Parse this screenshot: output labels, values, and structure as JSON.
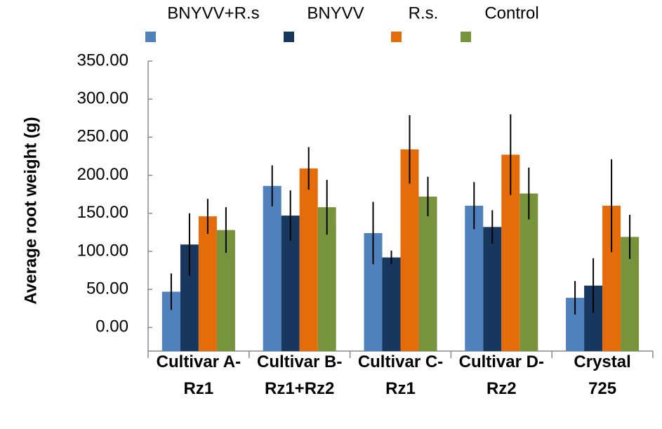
{
  "chart_data": {
    "type": "bar",
    "y_label": "Average root weight (g)",
    "categories": [
      [
        "Cultivar A-",
        "Rz1"
      ],
      [
        "Cultivar B-",
        "Rz1+Rz2"
      ],
      [
        "Cultivar C-",
        "Rz1"
      ],
      [
        "Cultivar D-",
        "Rz2"
      ],
      [
        "Crystal",
        "725"
      ]
    ],
    "series": [
      {
        "name": "BNYVV+R.s",
        "color": "#4f81bd",
        "values": [
          47,
          186,
          124,
          160,
          39
        ],
        "errors": [
          24,
          27,
          41,
          31,
          22
        ]
      },
      {
        "name": "BNYVV",
        "color": "#17375e",
        "values": [
          109,
          147,
          92,
          132,
          55
        ],
        "errors": [
          41,
          33,
          9,
          22,
          36
        ]
      },
      {
        "name": "R.s.",
        "color": "#e46c0a",
        "values": [
          146,
          209,
          234,
          227,
          160
        ],
        "errors": [
          23,
          28,
          45,
          53,
          61
        ]
      },
      {
        "name": "Control",
        "color": "#77933c",
        "values": [
          128,
          158,
          172,
          176,
          119
        ],
        "errors": [
          30,
          36,
          26,
          34,
          29
        ]
      }
    ],
    "ylim": [
      -31,
      350
    ],
    "yticks": [
      {
        "value": 0,
        "label": "0.00"
      },
      {
        "value": 50,
        "label": "50.00"
      },
      {
        "value": 100,
        "label": "100.00"
      },
      {
        "value": 150,
        "label": "150.00"
      },
      {
        "value": 200,
        "label": "200.00"
      },
      {
        "value": 250,
        "label": "250.00"
      },
      {
        "value": 300,
        "label": "300.00"
      },
      {
        "value": 350,
        "label": "350.00"
      }
    ],
    "legend": "top"
  }
}
